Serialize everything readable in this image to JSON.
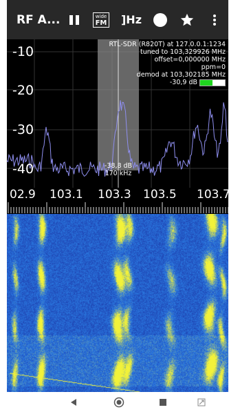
{
  "toolbar": {
    "app_title": "RF A...",
    "pause_icon": "pause-icon",
    "wfm_badge_top": "wide",
    "wfm_badge_bottom": "FM",
    "hz_label": "]Hz",
    "record_icon": "circle-icon",
    "star_icon": "star-icon",
    "menu_icon": "more-vert-icon"
  },
  "spectrum": {
    "info_lines": [
      "RTL-SDR (R820T) at 127.0.0.1:1234",
      "tuned to 103,329926 MHz",
      "offset=0,000000 MHz",
      "ppm=0",
      "demod at 103,302185 MHz"
    ],
    "signal_db": "-30,9 dB",
    "signal_level": 0.5,
    "y_ticks": [
      "-10",
      "-20",
      "-30",
      "-40"
    ],
    "x_ticks": [
      "02.9",
      "103.1",
      "103.3",
      "103.5",
      "103.7"
    ],
    "selection_db": "-38,8 dB",
    "selection_bw": "170 kHz",
    "colors": {
      "trace": "#8f8ff0",
      "selection": "#7a7a7a",
      "background": "#000000"
    }
  },
  "waterfall": {
    "colors": {
      "low": "#1a2fa0",
      "mid": "#2a78e0",
      "high": "#f2f23a"
    }
  },
  "navbar": {
    "back_icon": "back-triangle-icon",
    "home_icon": "home-circle-icon",
    "recents_icon": "recents-square-icon",
    "rotate_icon": "rotate-icon"
  }
}
